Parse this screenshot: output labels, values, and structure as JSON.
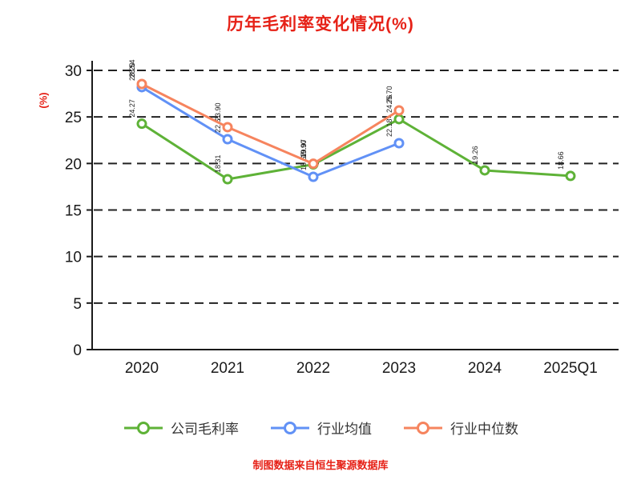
{
  "chart_data": {
    "type": "line",
    "title": "历年毛利率变化情况(%)",
    "ylabel": "(%)",
    "categories": [
      "2020",
      "2021",
      "2022",
      "2023",
      "2024",
      "2025Q1"
    ],
    "series": [
      {
        "name": "公司毛利率",
        "color": "#5eb237",
        "values": [
          24.27,
          18.31,
          19.9,
          24.76,
          19.26,
          18.66
        ]
      },
      {
        "name": "行业均值",
        "color": "#6191f6",
        "values": [
          28.2,
          22.61,
          18.57,
          22.18,
          null,
          null
        ]
      },
      {
        "name": "行业中位数",
        "color": "#f6845e",
        "values": [
          28.54,
          23.9,
          19.97,
          25.7,
          null,
          null
        ]
      }
    ],
    "ylim": [
      0,
      30
    ],
    "yticks": [
      0,
      5,
      10,
      15,
      20,
      25,
      30
    ],
    "grid": "horizontal-dashed",
    "legend_position": "bottom"
  },
  "footer": "制图数据来自恒生聚源数据库",
  "colors": {
    "title": "#e62117",
    "axis": "#1a1a1a",
    "tick_label": "#1a1a1a",
    "gridline": "#222222",
    "footer": "#e62117",
    "ylabel": "#e62117",
    "point_label": "#222222"
  }
}
